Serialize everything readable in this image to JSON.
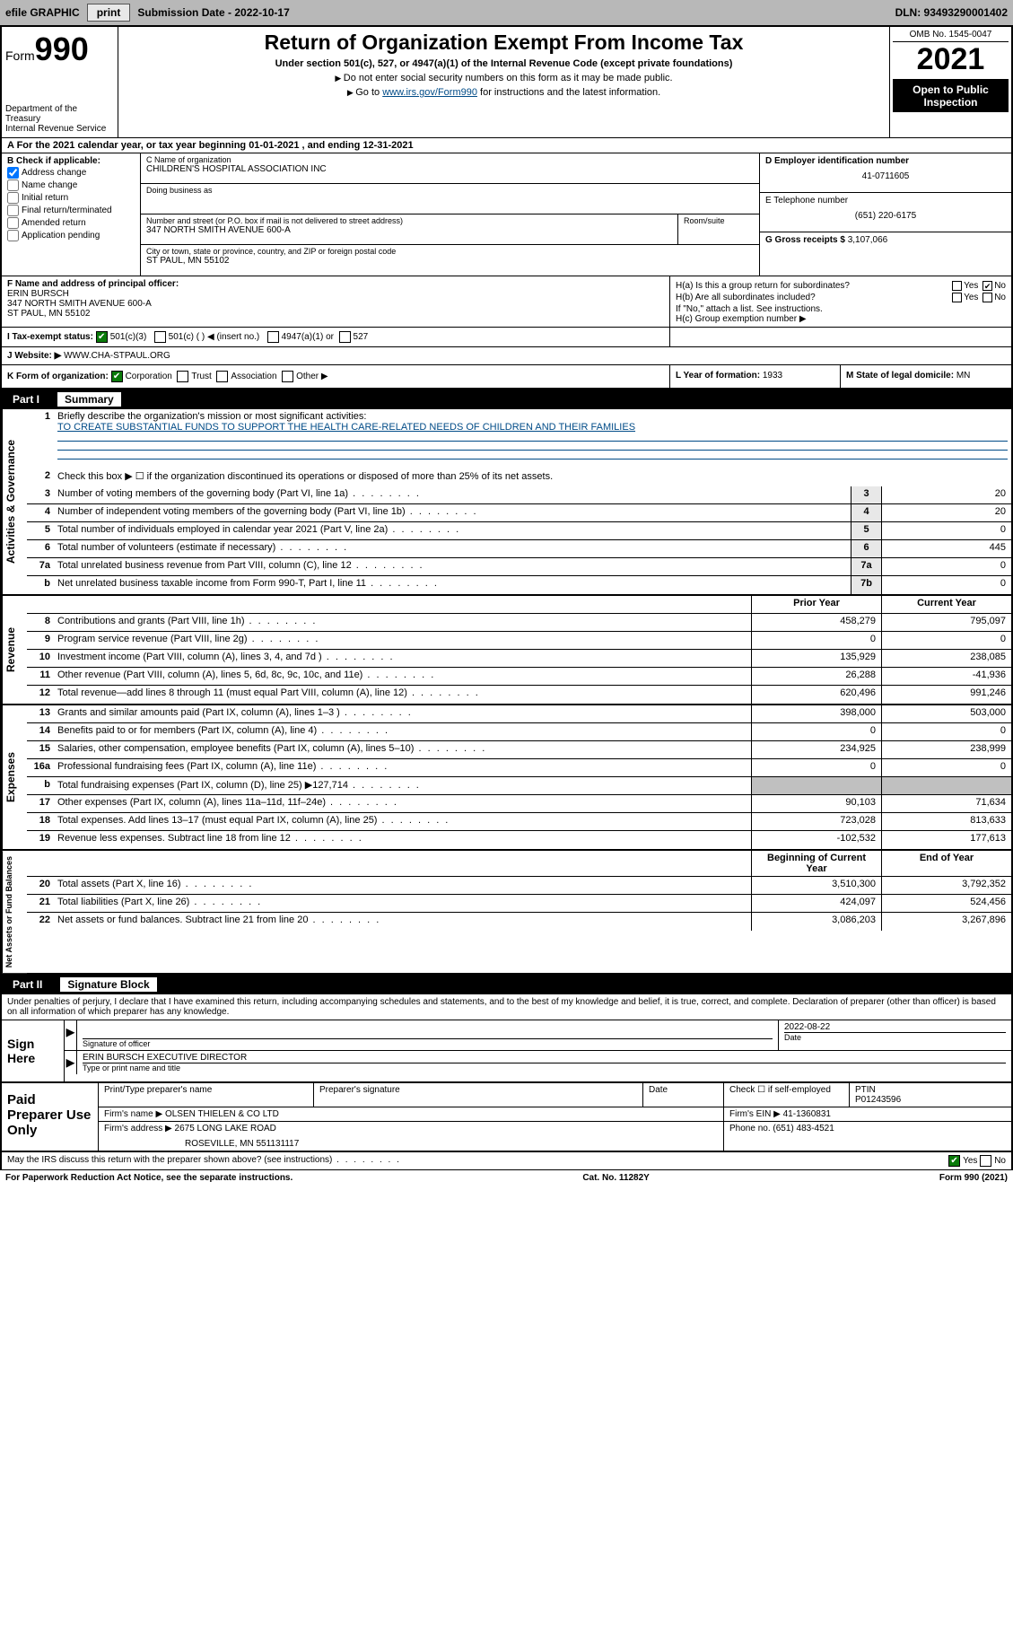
{
  "topbar": {
    "efile_label": "efile GRAPHIC",
    "print_btn": "print",
    "subdate_label": "Submission Date - 2022-10-17",
    "dln": "DLN: 93493290001402"
  },
  "header": {
    "form_word": "Form",
    "form_num": "990",
    "dept": "Department of the Treasury",
    "irs": "Internal Revenue Service",
    "title": "Return of Organization Exempt From Income Tax",
    "subtitle": "Under section 501(c), 527, or 4947(a)(1) of the Internal Revenue Code (except private foundations)",
    "note1": "Do not enter social security numbers on this form as it may be made public.",
    "note2_pre": "Go to ",
    "note2_link": "www.irs.gov/Form990",
    "note2_post": " for instructions and the latest information.",
    "omb": "OMB No. 1545-0047",
    "year": "2021",
    "inspect": "Open to Public Inspection"
  },
  "rowA": "A For the 2021 calendar year, or tax year beginning 01-01-2021   , and ending 12-31-2021",
  "colB": {
    "label": "B Check if applicable:",
    "opts": [
      "Address change",
      "Name change",
      "Initial return",
      "Final return/terminated",
      "Amended return",
      "Application pending"
    ],
    "checked_idx": 0
  },
  "colC": {
    "name_lbl": "C Name of organization",
    "name": "CHILDREN'S HOSPITAL ASSOCIATION INC",
    "dba_lbl": "Doing business as",
    "dba": "",
    "street_lbl": "Number and street (or P.O. box if mail is not delivered to street address)",
    "room_lbl": "Room/suite",
    "street": "347 NORTH SMITH AVENUE 600-A",
    "city_lbl": "City or town, state or province, country, and ZIP or foreign postal code",
    "city": "ST PAUL, MN  55102"
  },
  "colD": {
    "lbl": "D Employer identification number",
    "val": "41-0711605"
  },
  "colE": {
    "lbl": "E Telephone number",
    "val": "(651) 220-6175"
  },
  "colG": {
    "lbl": "G Gross receipts $",
    "val": "3,107,066"
  },
  "colF": {
    "lbl": "F  Name and address of principal officer:",
    "name": "ERIN BURSCH",
    "addr1": "347 NORTH SMITH AVENUE 600-A",
    "addr2": "ST PAUL, MN  55102"
  },
  "colH": {
    "ha": "H(a)  Is this a group return for subordinates?",
    "ha_no": true,
    "hb": "H(b)  Are all subordinates included?",
    "hb_note": "If \"No,\" attach a list. See instructions.",
    "hc": "H(c)  Group exemption number ▶"
  },
  "rowI": {
    "lbl": "I    Tax-exempt status:",
    "o1": "501(c)(3)",
    "o2": "501(c) (  ) ◀ (insert no.)",
    "o3": "4947(a)(1) or",
    "o4": "527"
  },
  "rowJ": {
    "lbl": "J    Website: ▶",
    "val": "WWW.CHA-STPAUL.ORG"
  },
  "rowK": {
    "lbl": "K Form of organization:",
    "opts": [
      "Corporation",
      "Trust",
      "Association",
      "Other ▶"
    ]
  },
  "rowL": {
    "lbl": "L Year of formation:",
    "val": "1933"
  },
  "rowM": {
    "lbl": "M State of legal domicile:",
    "val": "MN"
  },
  "part1": {
    "pt": "Part I",
    "ttl": "Summary"
  },
  "side_labels": {
    "ag": "Activities & Governance",
    "rev": "Revenue",
    "exp": "Expenses",
    "na": "Net Assets or Fund Balances"
  },
  "mission": {
    "lbl": "Briefly describe the organization's mission or most significant activities:",
    "text": "TO CREATE SUBSTANTIAL FUNDS TO SUPPORT THE HEALTH CARE-RELATED NEEDS OF CHILDREN AND THEIR FAMILIES"
  },
  "line2": "Check this box ▶ ☐  if the organization discontinued its operations or disposed of more than 25% of its net assets.",
  "ag_rows": [
    {
      "n": "3",
      "d": "Number of voting members of the governing body (Part VI, line 1a)",
      "box": "3",
      "v": "20"
    },
    {
      "n": "4",
      "d": "Number of independent voting members of the governing body (Part VI, line 1b)",
      "box": "4",
      "v": "20"
    },
    {
      "n": "5",
      "d": "Total number of individuals employed in calendar year 2021 (Part V, line 2a)",
      "box": "5",
      "v": "0"
    },
    {
      "n": "6",
      "d": "Total number of volunteers (estimate if necessary)",
      "box": "6",
      "v": "445"
    },
    {
      "n": "7a",
      "d": "Total unrelated business revenue from Part VIII, column (C), line 12",
      "box": "7a",
      "v": "0"
    },
    {
      "n": "b",
      "d": "Net unrelated business taxable income from Form 990-T, Part I, line 11",
      "box": "7b",
      "v": "0"
    }
  ],
  "col_hdr": {
    "prior": "Prior Year",
    "current": "Current Year"
  },
  "rev_rows": [
    {
      "n": "8",
      "d": "Contributions and grants (Part VIII, line 1h)",
      "p": "458,279",
      "c": "795,097"
    },
    {
      "n": "9",
      "d": "Program service revenue (Part VIII, line 2g)",
      "p": "0",
      "c": "0"
    },
    {
      "n": "10",
      "d": "Investment income (Part VIII, column (A), lines 3, 4, and 7d )",
      "p": "135,929",
      "c": "238,085"
    },
    {
      "n": "11",
      "d": "Other revenue (Part VIII, column (A), lines 5, 6d, 8c, 9c, 10c, and 11e)",
      "p": "26,288",
      "c": "-41,936"
    },
    {
      "n": "12",
      "d": "Total revenue—add lines 8 through 11 (must equal Part VIII, column (A), line 12)",
      "p": "620,496",
      "c": "991,246"
    }
  ],
  "exp_rows": [
    {
      "n": "13",
      "d": "Grants and similar amounts paid (Part IX, column (A), lines 1–3 )",
      "p": "398,000",
      "c": "503,000"
    },
    {
      "n": "14",
      "d": "Benefits paid to or for members (Part IX, column (A), line 4)",
      "p": "0",
      "c": "0"
    },
    {
      "n": "15",
      "d": "Salaries, other compensation, employee benefits (Part IX, column (A), lines 5–10)",
      "p": "234,925",
      "c": "238,999"
    },
    {
      "n": "16a",
      "d": "Professional fundraising fees (Part IX, column (A), line 11e)",
      "p": "0",
      "c": "0"
    },
    {
      "n": "b",
      "d": "Total fundraising expenses (Part IX, column (D), line 25) ▶127,714",
      "p": "",
      "c": "",
      "shade": true
    },
    {
      "n": "17",
      "d": "Other expenses (Part IX, column (A), lines 11a–11d, 11f–24e)",
      "p": "90,103",
      "c": "71,634"
    },
    {
      "n": "18",
      "d": "Total expenses. Add lines 13–17 (must equal Part IX, column (A), line 25)",
      "p": "723,028",
      "c": "813,633"
    },
    {
      "n": "19",
      "d": "Revenue less expenses. Subtract line 18 from line 12",
      "p": "-102,532",
      "c": "177,613"
    }
  ],
  "na_hdr": {
    "begin": "Beginning of Current Year",
    "end": "End of Year"
  },
  "na_rows": [
    {
      "n": "20",
      "d": "Total assets (Part X, line 16)",
      "p": "3,510,300",
      "c": "3,792,352"
    },
    {
      "n": "21",
      "d": "Total liabilities (Part X, line 26)",
      "p": "424,097",
      "c": "524,456"
    },
    {
      "n": "22",
      "d": "Net assets or fund balances. Subtract line 21 from line 20",
      "p": "3,086,203",
      "c": "3,267,896"
    }
  ],
  "part2": {
    "pt": "Part II",
    "ttl": "Signature Block"
  },
  "sig_intro": "Under penalties of perjury, I declare that I have examined this return, including accompanying schedules and statements, and to the best of my knowledge and belief, it is true, correct, and complete. Declaration of preparer (other than officer) is based on all information of which preparer has any knowledge.",
  "sign": {
    "label": "Sign Here",
    "sig_of": "Signature of officer",
    "date_lbl": "Date",
    "date": "2022-08-22",
    "name": "ERIN BURSCH  EXECUTIVE DIRECTOR",
    "name_lbl": "Type or print name and title"
  },
  "prep": {
    "label": "Paid Preparer Use Only",
    "h1": "Print/Type preparer's name",
    "h2": "Preparer's signature",
    "h3": "Date",
    "h4a": "Check ☐ if self-employed",
    "h4b": "PTIN",
    "ptin": "P01243596",
    "firm_lbl": "Firm's name   ▶",
    "firm": "OLSEN THIELEN & CO LTD",
    "ein_lbl": "Firm's EIN ▶",
    "ein": "41-1360831",
    "addr_lbl": "Firm's address ▶",
    "addr1": "2675 LONG LAKE ROAD",
    "addr2": "ROSEVILLE, MN  551131117",
    "phone_lbl": "Phone no.",
    "phone": "(651) 483-4521"
  },
  "footer": {
    "discuss": "May the IRS discuss this return with the preparer shown above? (see instructions)",
    "yes": "Yes",
    "no": "No",
    "paperwork": "For Paperwork Reduction Act Notice, see the separate instructions.",
    "cat": "Cat. No. 11282Y",
    "form": "Form 990 (2021)"
  },
  "colors": {
    "link": "#004b87",
    "topbar_bg": "#b8b8b8",
    "checked_green": "#0a7a0a",
    "shade": "#c0c0c0"
  }
}
